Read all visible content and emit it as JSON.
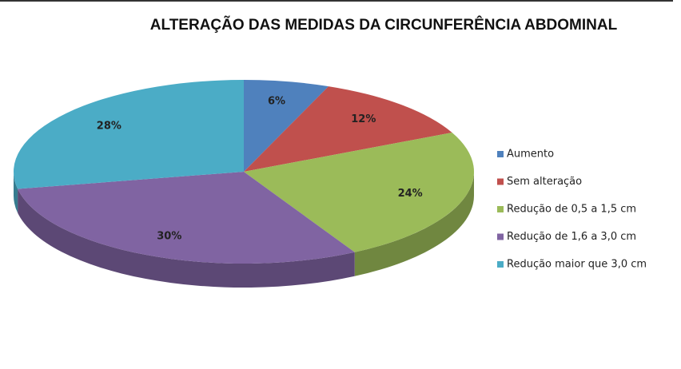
{
  "chart_data": {
    "type": "pie",
    "title": "ALTERAÇÃO DAS MEDIDAS DA CIRCUNFERÊNCIA  ABDOMINAL",
    "categories": [
      "Aumento",
      "Sem alteração",
      "Redução de 0,5 a 1,5 cm",
      "Redução de 1,6 a 3,0 cm",
      "Redução maior que 3,0 cm"
    ],
    "values": [
      6,
      12,
      24,
      30,
      28
    ],
    "value_labels": [
      "6%",
      "12%",
      "24%",
      "30%",
      "28%"
    ],
    "colors": [
      "#4f81bd",
      "#c0504d",
      "#9bbb59",
      "#8064a2",
      "#4bacc6"
    ],
    "legend": "right"
  }
}
